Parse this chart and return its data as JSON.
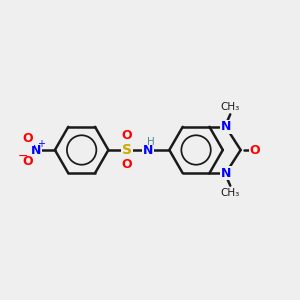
{
  "background_color": "#efefef",
  "bond_color": "#1a1a1a",
  "bond_width": 1.8,
  "atom_colors": {
    "N": "#0000ff",
    "O": "#ff0000",
    "S": "#ccaa00",
    "H": "#4a8a8a",
    "C": "#1a1a1a"
  },
  "figsize": [
    3.0,
    3.0
  ],
  "dpi": 100
}
